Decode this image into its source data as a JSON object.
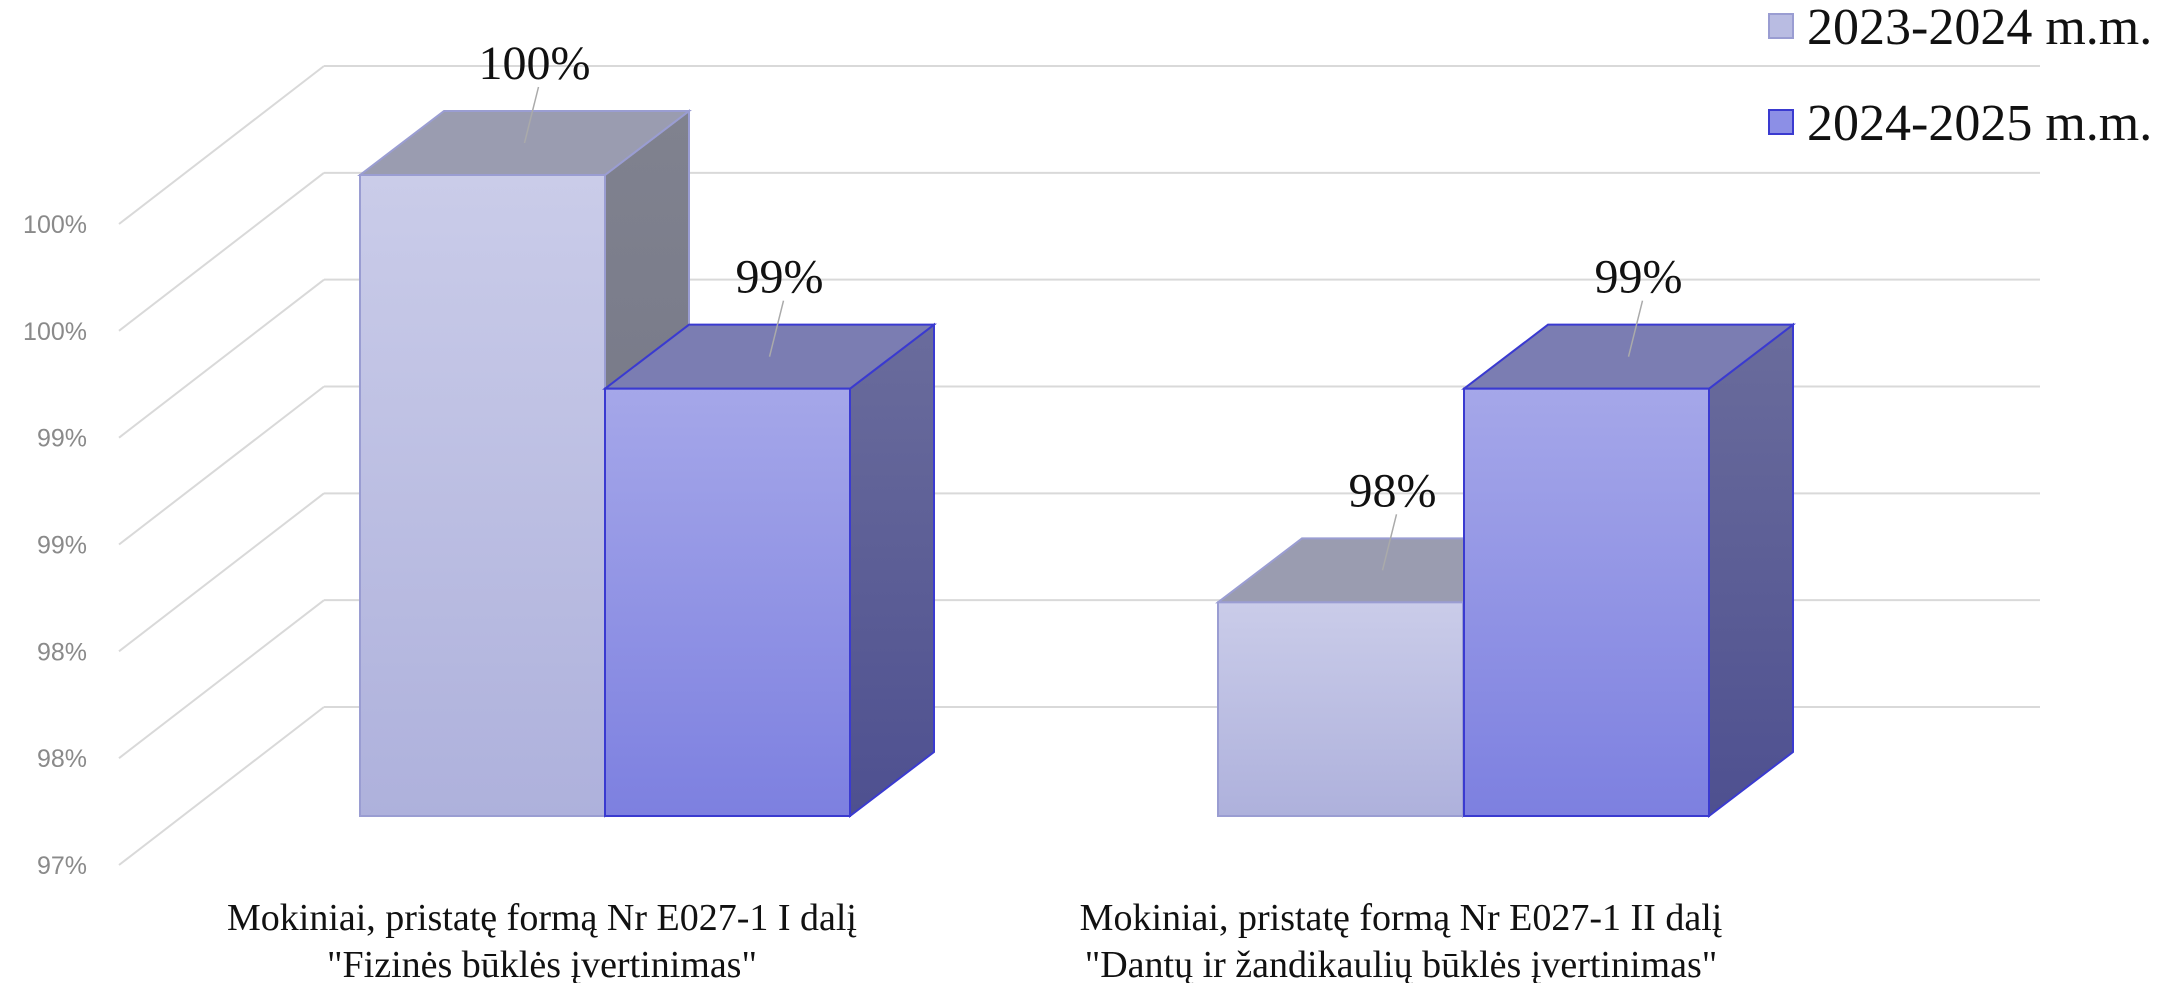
{
  "chart_data": {
    "type": "bar3d",
    "categories": [
      [
        "Mokiniai, pristatę formą Nr E027-1 I dalį",
        "\"Fizinės būklės įvertinimas\""
      ],
      [
        "Mokiniai, pristatę formą Nr E027-1 II dalį",
        "\"Dantų ir žandikaulių būklės įvertinimas\""
      ]
    ],
    "series": [
      {
        "name": "2023-2024 m.m.",
        "color": "#b9bce2",
        "values": [
          100,
          98
        ],
        "value_labels": [
          "100%",
          "98%"
        ]
      },
      {
        "name": "2024-2025 m.m.",
        "color": "#8c8fe6",
        "values": [
          99,
          99
        ],
        "value_labels": [
          "99%",
          "99%"
        ]
      }
    ],
    "ylim": [
      97,
      100
    ],
    "yticks": [
      {
        "value": 97,
        "label": "97%"
      },
      {
        "value": 97.5,
        "label": "98%"
      },
      {
        "value": 98,
        "label": "98%"
      },
      {
        "value": 98.5,
        "label": "99%"
      },
      {
        "value": 99,
        "label": "99%"
      },
      {
        "value": 99.5,
        "label": "100%"
      },
      {
        "value": 100,
        "label": "100%"
      }
    ],
    "grid": true,
    "legend": "top-right"
  }
}
